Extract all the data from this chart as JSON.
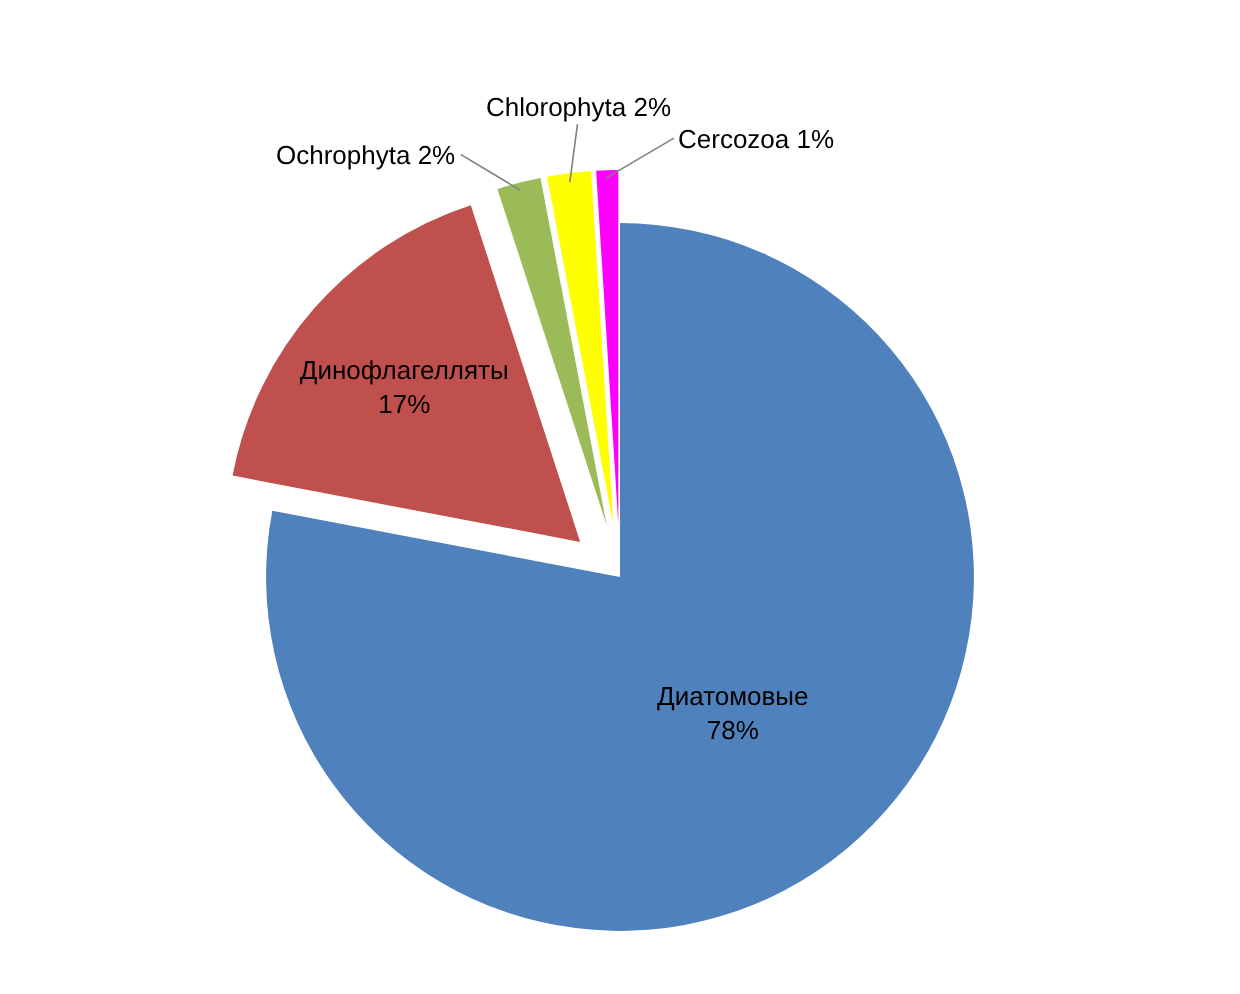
{
  "chart_data": {
    "type": "pie",
    "categories": [
      "Диатомовые",
      "Динофлагелляты",
      "Ochrophyta",
      "Chlorophyta",
      "Cercozoa"
    ],
    "values": [
      78,
      17,
      2,
      2,
      1
    ],
    "value_labels": [
      "78%",
      "17%",
      "2%",
      "2%",
      "1%"
    ],
    "colors": [
      "#4f81bd",
      "#c0504d",
      "#9bbb59",
      "#ffff00",
      "#ff00ff"
    ],
    "legend": false
  }
}
